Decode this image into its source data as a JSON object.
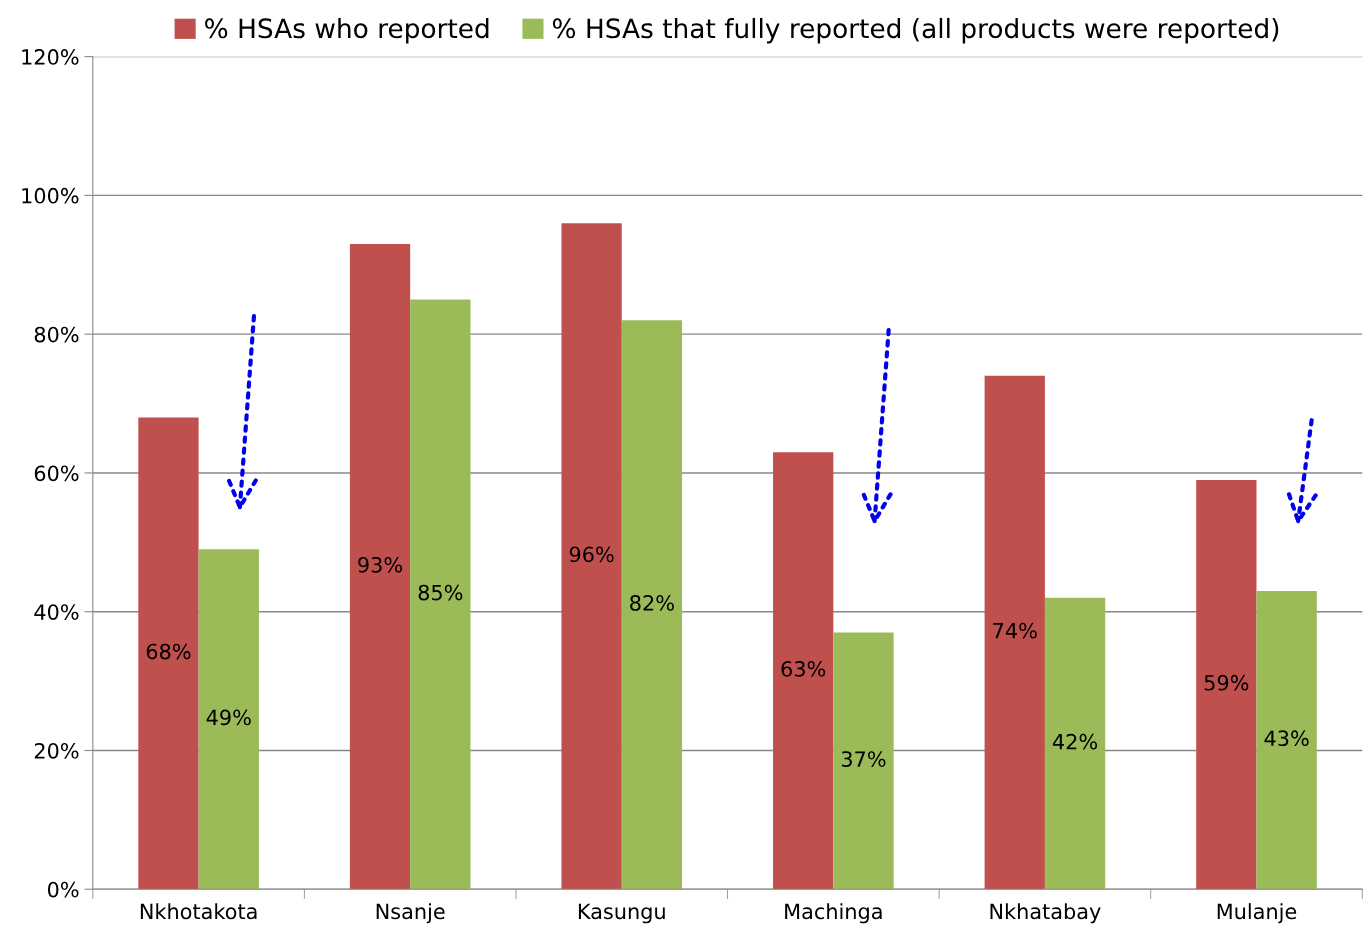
{
  "chart_data": {
    "type": "bar",
    "categories": [
      "Nkhotakota",
      "Nsanje",
      "Kasungu",
      "Machinga",
      "Nkhatabay",
      "Mulanje"
    ],
    "series": [
      {
        "name": "% HSAs who reported",
        "color": "#c0504d",
        "values": [
          68,
          93,
          96,
          63,
          74,
          59
        ],
        "value_labels": [
          "68%",
          "93%",
          "96%",
          "63%",
          "74%",
          "59%"
        ]
      },
      {
        "name": "% HSAs that fully reported (all products were reported)",
        "color": "#9bbb59",
        "values": [
          49,
          85,
          82,
          37,
          42,
          43
        ],
        "value_labels": [
          "49%",
          "85%",
          "82%",
          "37%",
          "42%",
          "43%"
        ]
      }
    ],
    "ylim": [
      0,
      120
    ],
    "yticks": [
      {
        "value": 0,
        "label": "0%"
      },
      {
        "value": 20,
        "label": "20%"
      },
      {
        "value": 40,
        "label": "40%"
      },
      {
        "value": 60,
        "label": "60%"
      },
      {
        "value": 80,
        "label": "80%"
      },
      {
        "value": 100,
        "label": "100%"
      },
      {
        "value": 120,
        "label": "120%"
      }
    ],
    "grid": "y",
    "legend": "top"
  }
}
